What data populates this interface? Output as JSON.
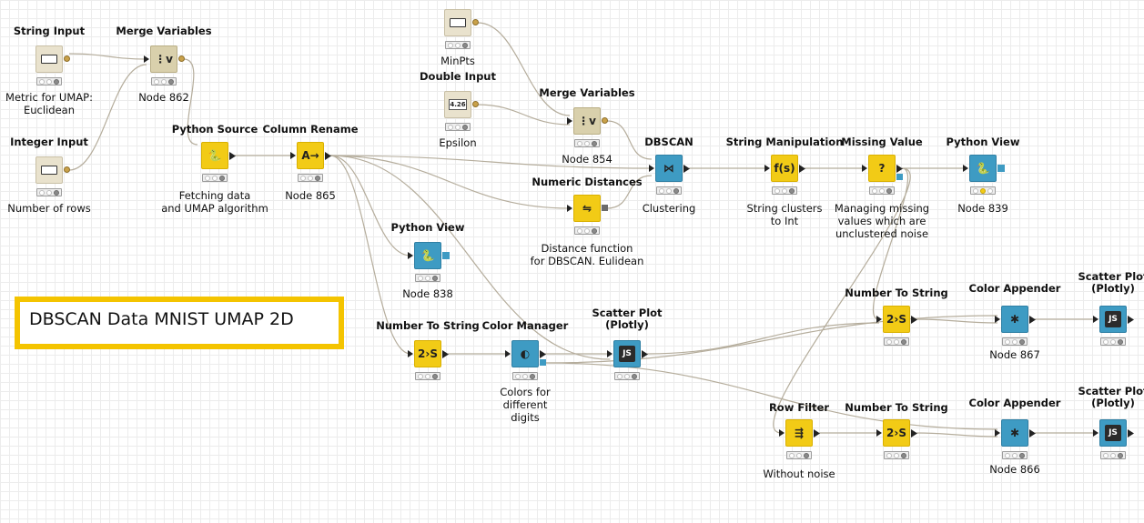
{
  "annotation": {
    "text": "DBSCAN Data MNIST UMAP 2D"
  },
  "nodes": [
    {
      "id": "string-input",
      "title": "String Input",
      "label": "Metric for UMAP:\nEuclidean",
      "color": "beige",
      "icon": "string-widget-icon",
      "status": "grey"
    },
    {
      "id": "merge-variables-1",
      "title": "Merge Variables",
      "label": "Node 862",
      "color": "olive",
      "icon": "merge-variables-icon",
      "status": "grey"
    },
    {
      "id": "integer-input",
      "title": "Integer Input",
      "label": "Number of rows",
      "color": "beige",
      "icon": "integer-widget-icon",
      "status": "grey"
    },
    {
      "id": "python-source",
      "title": "Python Source",
      "label": "Fetching data\nand UMAP algorithm",
      "color": "yellow",
      "icon": "python-icon",
      "status": "grey"
    },
    {
      "id": "column-rename",
      "title": "Column Rename",
      "label": "Node 865",
      "color": "yellow",
      "icon": "column-rename-icon",
      "status": "grey"
    },
    {
      "id": "minpts-input",
      "title": "",
      "label": "MinPts",
      "color": "beige",
      "icon": "integer-widget-icon",
      "status": "grey"
    },
    {
      "id": "double-input",
      "title": "Double Input",
      "label": "Epsilon",
      "color": "beige",
      "icon": "double-widget-icon",
      "status": "grey"
    },
    {
      "id": "merge-variables-2",
      "title": "Merge Variables",
      "label": "Node 854",
      "color": "olive",
      "icon": "merge-variables-icon",
      "status": "grey"
    },
    {
      "id": "dbscan",
      "title": "DBSCAN",
      "label": "Clustering",
      "color": "blue",
      "icon": "dbscan-icon",
      "status": "grey"
    },
    {
      "id": "numeric-distances",
      "title": "Numeric Distances",
      "label": "Distance function\nfor DBSCAN. Eulidean",
      "color": "yellow",
      "icon": "numeric-distances-icon",
      "status": "grey"
    },
    {
      "id": "string-manipulation",
      "title": "String Manipulation",
      "label": "String clusters\nto Int",
      "color": "yellow",
      "icon": "string-manipulation-icon",
      "status": "grey"
    },
    {
      "id": "missing-value",
      "title": "Missing Value",
      "label": "Managing missing\nvalues which are\nunclustered noise",
      "color": "yellow",
      "icon": "question-icon",
      "status": "grey"
    },
    {
      "id": "python-view-1",
      "title": "Python View",
      "label": "Node 839",
      "color": "blue",
      "icon": "python-icon",
      "status": "yellow"
    },
    {
      "id": "python-view-2",
      "title": "Python View",
      "label": "Node 838",
      "color": "blue",
      "icon": "python-icon",
      "status": "grey"
    },
    {
      "id": "number-to-string-1",
      "title": "Number To String",
      "label": "",
      "color": "yellow",
      "icon": "number-to-string-icon",
      "status": "grey"
    },
    {
      "id": "color-manager",
      "title": "Color Manager",
      "label": "Colors for\ndifferent\ndigits",
      "color": "blue",
      "icon": "color-manager-icon",
      "status": "grey"
    },
    {
      "id": "scatter-plot-1",
      "title": "Scatter Plot\n(Plotly)",
      "label": "",
      "color": "blue",
      "icon": "js-icon",
      "status": "grey"
    },
    {
      "id": "number-to-string-2",
      "title": "Number To String",
      "label": "",
      "color": "yellow",
      "icon": "number-to-string-icon",
      "status": "grey"
    },
    {
      "id": "color-appender-1",
      "title": "Color Appender",
      "label": "Node 867",
      "color": "blue",
      "icon": "color-appender-icon",
      "status": "grey"
    },
    {
      "id": "scatter-plot-2",
      "title": "Scatter Plot\n(Plotly)",
      "label": "",
      "color": "blue",
      "icon": "js-icon",
      "status": "grey"
    },
    {
      "id": "row-filter",
      "title": "Row Filter",
      "label": "Without noise",
      "color": "yellow",
      "icon": "row-filter-icon",
      "status": "grey"
    },
    {
      "id": "number-to-string-3",
      "title": "Number To String",
      "label": "",
      "color": "yellow",
      "icon": "number-to-string-icon",
      "status": "grey"
    },
    {
      "id": "color-appender-2",
      "title": "Color Appender",
      "label": "Node 866",
      "color": "blue",
      "icon": "color-appender-icon",
      "status": "grey"
    },
    {
      "id": "scatter-plot-3",
      "title": "Scatter Plot\n(Plotly)",
      "label": "",
      "color": "blue",
      "icon": "js-icon",
      "status": "grey"
    }
  ],
  "icon_glyphs": {
    "python-icon": "🐍",
    "column-rename-icon": "A→",
    "dbscan-icon": "⋈",
    "numeric-distances-icon": "⇋",
    "string-manipulation-icon": "f(s)",
    "question-icon": "?",
    "number-to-string-icon": "2›S",
    "color-manager-icon": "◐",
    "js-icon": "JS",
    "color-appender-icon": "✱",
    "row-filter-icon": "⇶",
    "merge-variables-icon": "⋮v",
    "string-widget-icon": "",
    "integer-widget-icon": "",
    "double-widget-icon": "4.26"
  }
}
